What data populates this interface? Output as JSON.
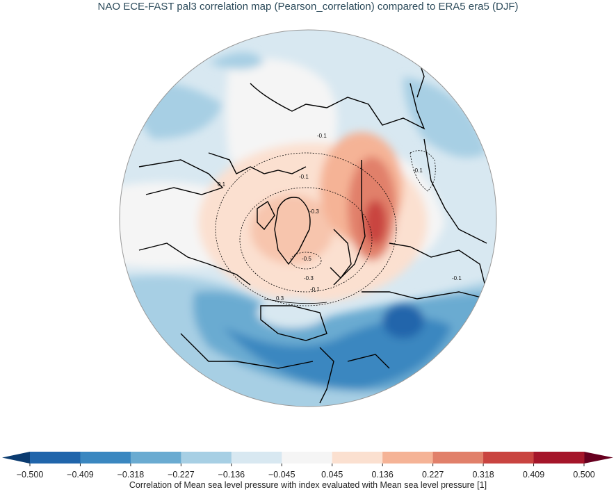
{
  "title": "NAO ECE-FAST pal3 correlation map (Pearson_correlation) compared to ERA5 era5 (DJF)",
  "map": {
    "projection": "north-polar-stereographic",
    "contour_labels": [
      "-0.1",
      "0.1",
      "-0.1",
      "-0.3",
      "-0.5",
      "-0.3",
      "-0.1",
      "0.3",
      "-0.1",
      "-0.1"
    ]
  },
  "colorbar": {
    "label": "Correlation of Mean sea level pressure with index evaluated with Mean sea level pressure [1]",
    "ticks": [
      "−0.500",
      "−0.409",
      "−0.318",
      "−0.227",
      "−0.136",
      "−0.045",
      "0.045",
      "0.136",
      "0.227",
      "0.318",
      "0.409",
      "0.500"
    ],
    "colors": [
      "#2065ab",
      "#3a87c0",
      "#6aabd1",
      "#a7cfe4",
      "#d8e8f1",
      "#f5f5f5",
      "#fbe0d0",
      "#f5b396",
      "#e1806a",
      "#c94440",
      "#a5162a"
    ],
    "under_color": "#0b3b70",
    "over_color": "#67001f"
  }
}
